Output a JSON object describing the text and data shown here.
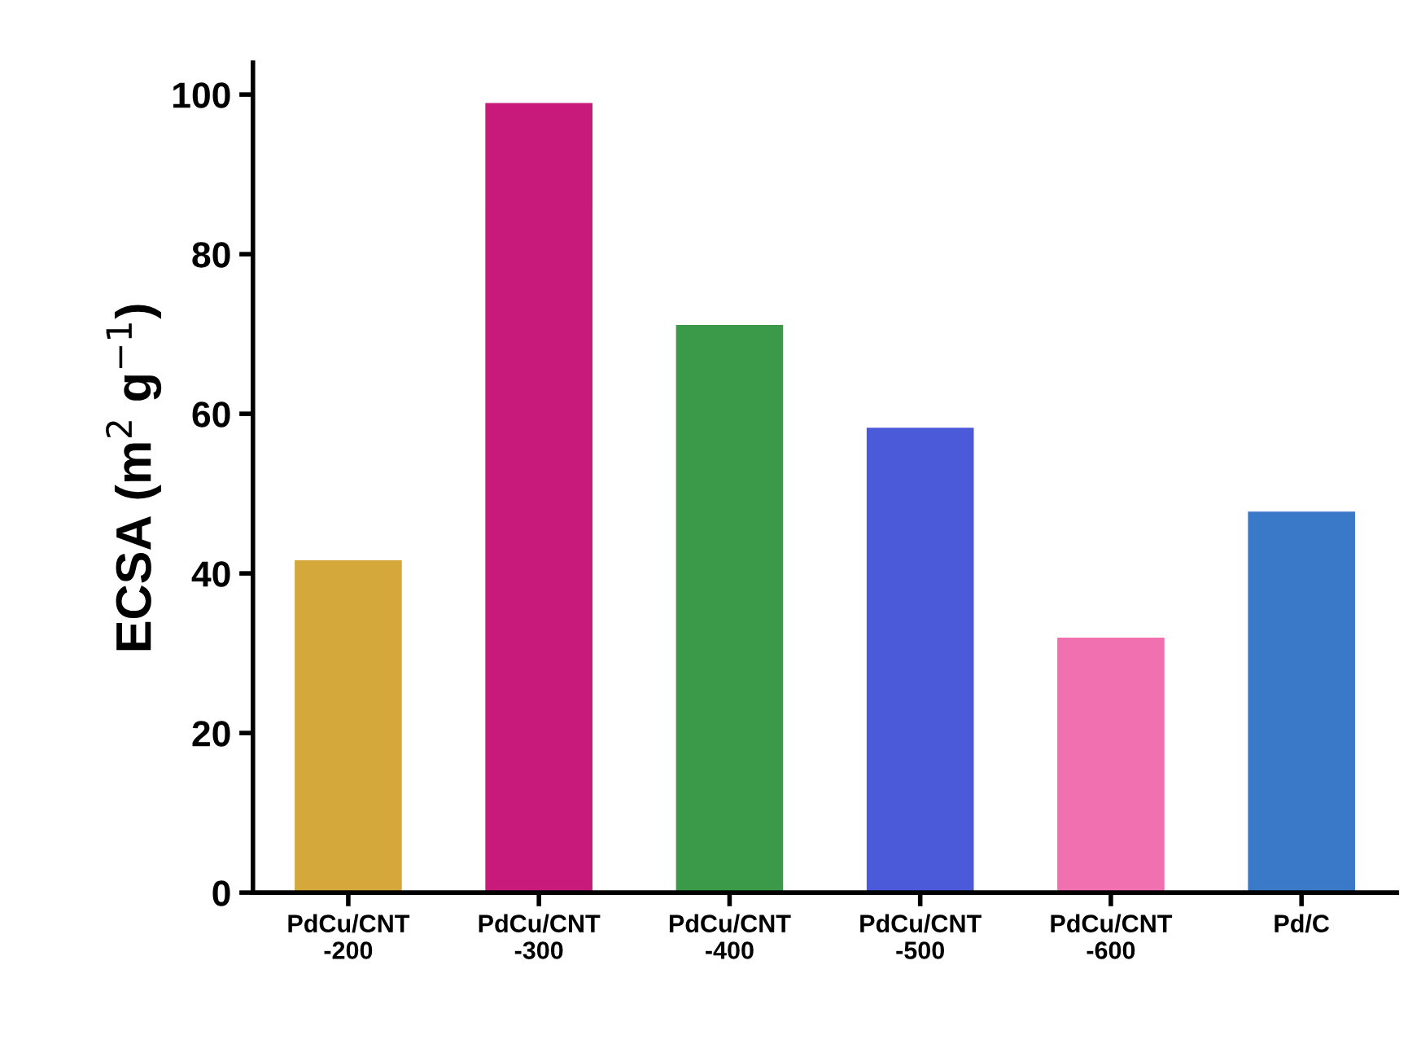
{
  "chart_data": {
    "type": "bar",
    "ylabel": "ECSA (m$^{2}$ g$^{−1}$)",
    "categories": [
      "PdCu/CNT\n-200",
      "PdCu/CNT\n-300",
      "PdCu/CNT\n-400",
      "PdCu/CNT\n-500",
      "PdCu/CNT\n-600",
      "Pd/C"
    ],
    "values": [
      41.5,
      98.8,
      71.0,
      58.1,
      31.8,
      47.6
    ],
    "colors": [
      "#d4a83a",
      "#c81a7a",
      "#3a9a4a",
      "#4a5ad8",
      "#f070b0",
      "#3a78c8"
    ],
    "ylim": [
      0,
      104
    ],
    "yticks": [
      0,
      20,
      40,
      60,
      80,
      100
    ],
    "grid": false,
    "legend": false
  }
}
